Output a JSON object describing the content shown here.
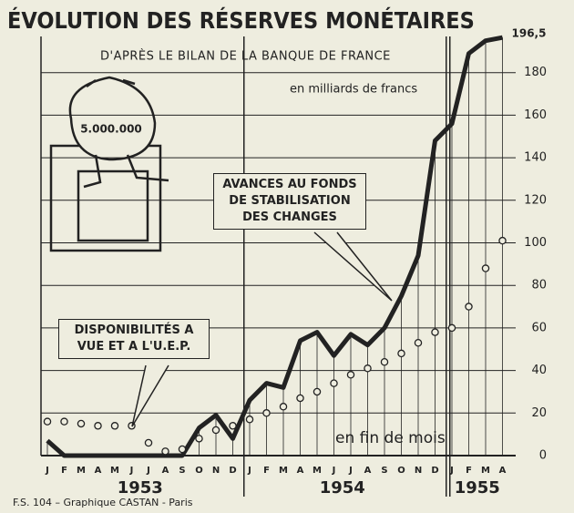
{
  "chart_data": {
    "type": "line",
    "title": "ÉVOLUTION DES RÉSERVES MONÉTAIRES",
    "subtitle": "D'APRÈS LE BILAN DE LA BANQUE DE FRANCE",
    "unit_label": "en milliards de francs",
    "x_note": "en fin de mois",
    "footer": "F.S. 104 – Graphique CASTAN - Paris",
    "illustration_label": "5.000.000",
    "categories": [
      "J",
      "F",
      "M",
      "A",
      "M",
      "J",
      "J",
      "A",
      "S",
      "O",
      "N",
      "D",
      "J",
      "F",
      "M",
      "A",
      "M",
      "J",
      "J",
      "A",
      "S",
      "O",
      "N",
      "D",
      "J",
      "F",
      "M",
      "A"
    ],
    "years": [
      "1953",
      "1954",
      "1955"
    ],
    "series": [
      {
        "name": "AVANCES AU FONDS DE STABILISATION DES CHANGES",
        "color": "#222222",
        "style": "solid",
        "values": [
          7,
          0,
          0,
          0,
          0,
          0,
          0,
          0,
          0,
          13,
          19,
          8,
          26,
          34,
          32,
          54,
          58,
          47,
          57,
          52,
          60,
          75,
          94,
          148,
          156,
          189,
          195,
          196.5
        ],
        "value_labels": [
          null,
          null,
          null,
          null,
          null,
          null,
          null,
          null,
          null,
          null,
          null,
          null,
          null,
          null,
          null,
          null,
          null,
          null,
          null,
          null,
          null,
          null,
          null,
          null,
          null,
          null,
          null,
          "196,5"
        ]
      },
      {
        "name": "DISPONIBILITÉS A VUE ET A L'U.E.P.",
        "color": "#222222",
        "style": "dotted",
        "values": [
          16,
          16,
          15,
          14,
          14,
          14,
          6,
          2,
          3,
          8,
          12,
          14,
          17,
          20,
          23,
          27,
          30,
          34,
          38,
          41,
          44,
          48,
          53,
          58,
          60,
          70,
          88,
          101
        ]
      }
    ],
    "ylim": [
      0,
      200
    ],
    "yticks": [
      0,
      20,
      40,
      60,
      80,
      100,
      120,
      140,
      160,
      180
    ],
    "grid": true
  }
}
